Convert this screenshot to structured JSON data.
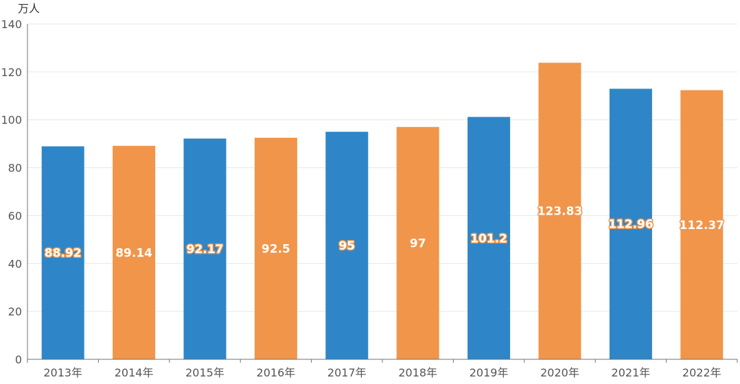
{
  "chart_data": {
    "type": "bar",
    "ylabel": "万人",
    "categories": [
      "2013年",
      "2014年",
      "2015年",
      "2016年",
      "2017年",
      "2018年",
      "2019年",
      "2020年",
      "2021年",
      "2022年"
    ],
    "values": [
      88.92,
      89.14,
      92.17,
      92.5,
      95,
      97,
      101.2,
      123.83,
      112.96,
      112.37
    ],
    "value_labels": [
      "88.92",
      "89.14",
      "92.17",
      "92.5",
      "95",
      "97",
      "101.2",
      "123.83",
      "112.96",
      "112.37"
    ],
    "ylim": [
      0,
      140
    ],
    "yticks": [
      "0",
      "20",
      "40",
      "60",
      "80",
      "100",
      "120",
      "140"
    ],
    "grid": true,
    "colors": [
      "#2e86c8",
      "#f0954a"
    ]
  }
}
